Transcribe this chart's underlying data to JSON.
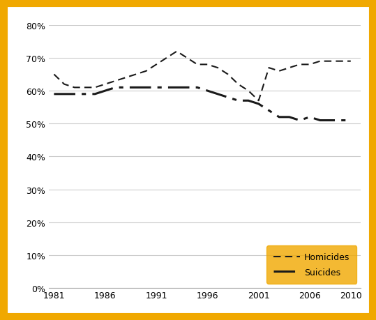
{
  "homicides_x": [
    1981,
    1982,
    1983,
    1984,
    1985,
    1986,
    1987,
    1988,
    1989,
    1990,
    1991,
    1992,
    1993,
    1994,
    1995,
    1996,
    1997,
    1998,
    1999,
    2000,
    2001,
    2002,
    2003,
    2004,
    2005,
    2006,
    2007,
    2008,
    2009,
    2010
  ],
  "homicides_y": [
    65,
    62,
    61,
    61,
    61,
    62,
    63,
    64,
    65,
    66,
    68,
    70,
    72,
    70,
    68,
    68,
    67,
    65,
    62,
    60,
    57,
    67,
    66,
    67,
    68,
    68,
    69,
    69,
    69,
    69
  ],
  "suicides_x": [
    1981,
    1982,
    1983,
    1984,
    1985,
    1986,
    1987,
    1988,
    1989,
    1990,
    1991,
    1992,
    1993,
    1994,
    1995,
    1996,
    1997,
    1998,
    1999,
    2000,
    2001,
    2002,
    2003,
    2004,
    2005,
    2006,
    2007,
    2008,
    2009,
    2010
  ],
  "suicides_y": [
    59,
    59,
    59,
    59,
    59,
    60,
    61,
    61,
    61,
    61,
    61,
    61,
    61,
    61,
    61,
    60,
    59,
    58,
    57,
    57,
    56,
    54,
    52,
    52,
    51,
    52,
    51,
    51,
    51,
    51
  ],
  "line_color": "#1a1a1a",
  "background_color": "#ffffff",
  "border_color": "#f0a800",
  "border_linewidth": 8,
  "ylim": [
    0,
    80
  ],
  "xlim": [
    1980.5,
    2011
  ],
  "yticks": [
    0,
    10,
    20,
    30,
    40,
    50,
    60,
    70,
    80
  ],
  "xticks": [
    1981,
    1986,
    1991,
    1996,
    2001,
    2006,
    2010
  ],
  "legend_bg_color": "#f0a800",
  "legend_labels": [
    "Homicides",
    "Suicides"
  ]
}
